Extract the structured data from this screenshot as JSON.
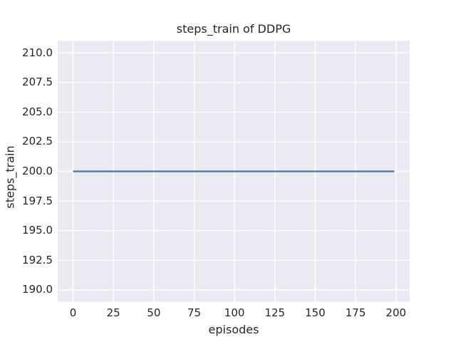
{
  "chart_data": {
    "type": "line",
    "title": "steps_train of DDPG",
    "xlabel": "episodes",
    "ylabel": "steps_train",
    "x_ticks": [
      0,
      25,
      50,
      75,
      100,
      125,
      150,
      175,
      200
    ],
    "x_tick_labels": [
      "0",
      "25",
      "50",
      "75",
      "100",
      "125",
      "150",
      "175",
      "200"
    ],
    "y_ticks": [
      190.0,
      192.5,
      195.0,
      197.5,
      200.0,
      202.5,
      205.0,
      207.5,
      210.0
    ],
    "y_tick_labels": [
      "190.0",
      "192.5",
      "195.0",
      "197.5",
      "200.0",
      "202.5",
      "205.0",
      "207.5",
      "210.0"
    ],
    "xlim": [
      -9.5,
      208.5
    ],
    "ylim": [
      189.0,
      211.0
    ],
    "grid": true,
    "legend_position": "none",
    "series": [
      {
        "name": "steps_train",
        "color": "#4c72b0",
        "x": [
          0,
          199
        ],
        "y": [
          200,
          200
        ]
      }
    ],
    "colors": {
      "figure_background": "#ffffff",
      "plot_background": "#eaeaf2",
      "gridline": "#ffffff",
      "text": "#262626"
    }
  }
}
